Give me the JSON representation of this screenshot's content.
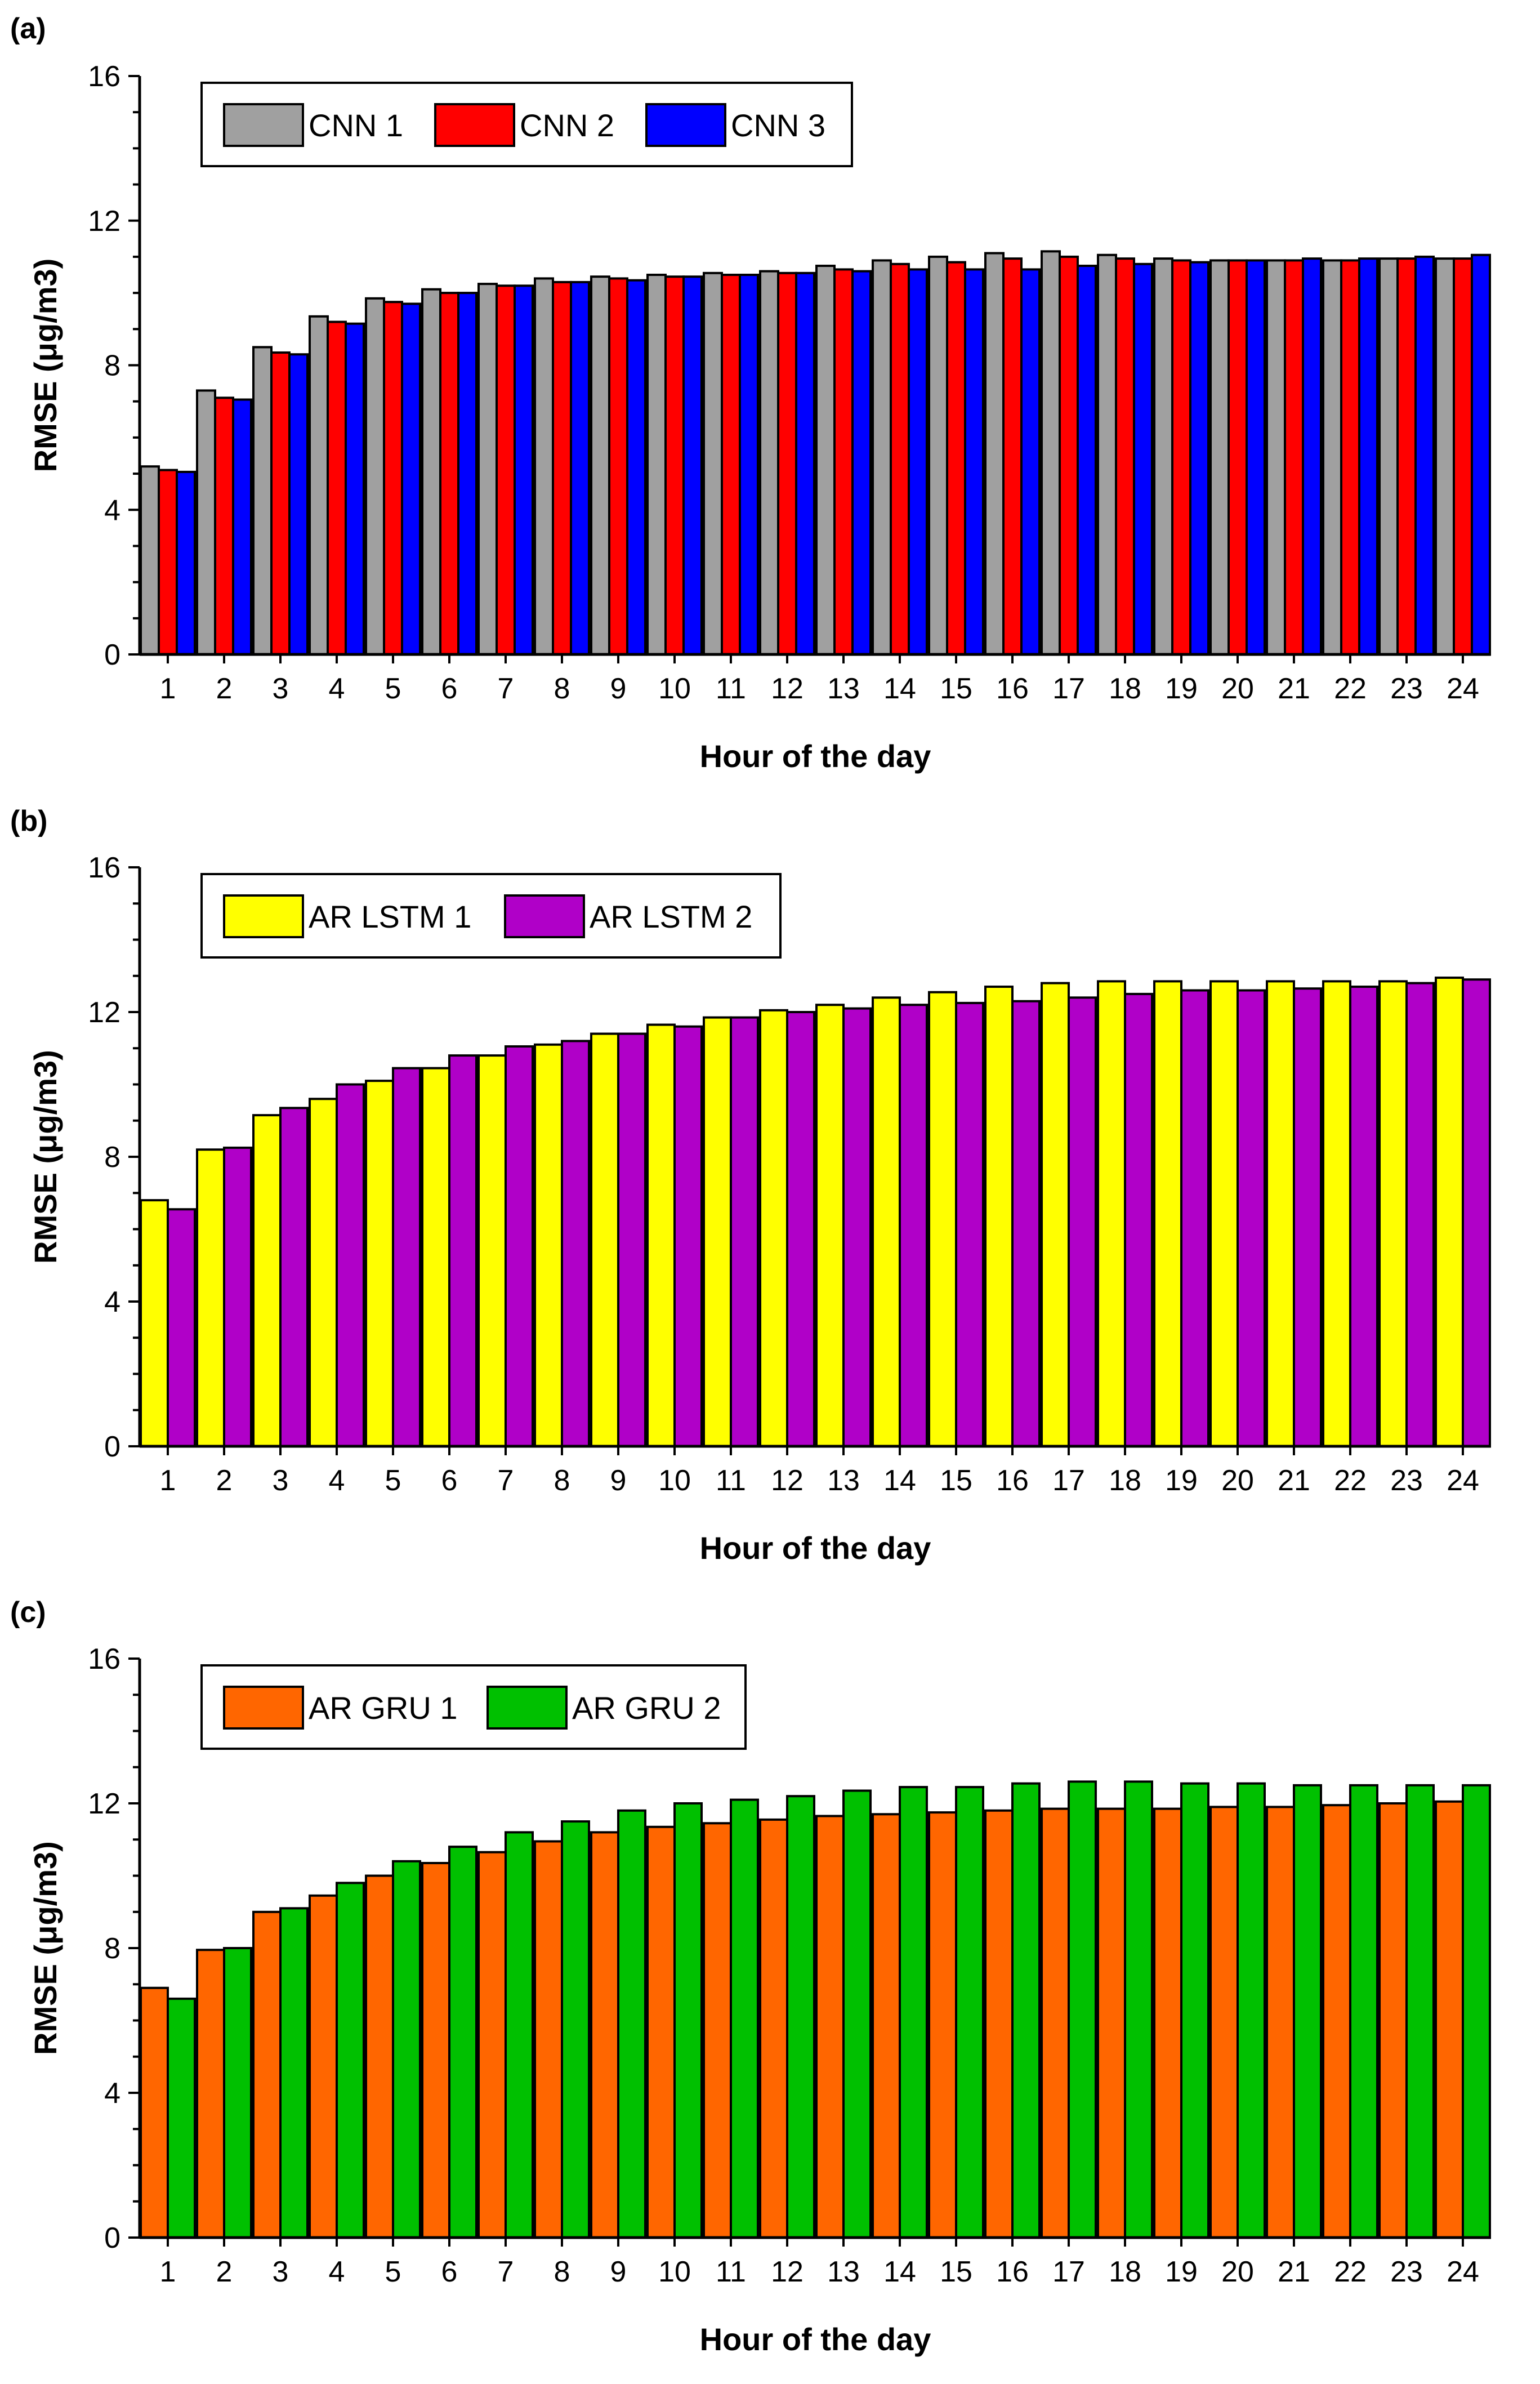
{
  "chart_data": [
    {
      "type": "bar",
      "panel_label": "(a)",
      "title": "",
      "xlabel": "Hour of the day",
      "ylabel": "RMSE (μg/m3)",
      "ylim": [
        0,
        16
      ],
      "yticks": [
        "0",
        "4",
        "8",
        "12",
        "16"
      ],
      "grid": false,
      "legend_position": "top-left",
      "categories": [
        "1",
        "2",
        "3",
        "4",
        "5",
        "6",
        "7",
        "8",
        "9",
        "10",
        "11",
        "12",
        "13",
        "14",
        "15",
        "16",
        "17",
        "18",
        "19",
        "20",
        "21",
        "22",
        "23",
        "24"
      ],
      "series": [
        {
          "name": "CNN 1",
          "color": "#a0a0a0",
          "values": [
            5.2,
            7.3,
            8.5,
            9.35,
            9.85,
            10.1,
            10.25,
            10.4,
            10.45,
            10.5,
            10.55,
            10.6,
            10.75,
            10.9,
            11.0,
            11.1,
            11.15,
            11.05,
            10.95,
            10.9,
            10.9,
            10.9,
            10.95,
            10.95
          ]
        },
        {
          "name": "CNN 2",
          "color": "#ff0000",
          "values": [
            5.1,
            7.1,
            8.35,
            9.2,
            9.75,
            10.0,
            10.2,
            10.3,
            10.4,
            10.45,
            10.5,
            10.55,
            10.65,
            10.8,
            10.85,
            10.95,
            11.0,
            10.95,
            10.9,
            10.9,
            10.9,
            10.9,
            10.95,
            10.95
          ]
        },
        {
          "name": "CNN 3",
          "color": "#0000ff",
          "values": [
            5.05,
            7.05,
            8.3,
            9.15,
            9.7,
            10.0,
            10.2,
            10.3,
            10.35,
            10.45,
            10.5,
            10.55,
            10.6,
            10.65,
            10.65,
            10.65,
            10.75,
            10.8,
            10.85,
            10.9,
            10.95,
            10.95,
            11.0,
            11.05
          ]
        }
      ]
    },
    {
      "type": "bar",
      "panel_label": "(b)",
      "title": "",
      "xlabel": "Hour of the day",
      "ylabel": "RMSE (μg/m3)",
      "ylim": [
        0,
        16
      ],
      "yticks": [
        "0",
        "4",
        "8",
        "12",
        "16"
      ],
      "grid": false,
      "legend_position": "top-left",
      "categories": [
        "1",
        "2",
        "3",
        "4",
        "5",
        "6",
        "7",
        "8",
        "9",
        "10",
        "11",
        "12",
        "13",
        "14",
        "15",
        "16",
        "17",
        "18",
        "19",
        "20",
        "21",
        "22",
        "23",
        "24"
      ],
      "series": [
        {
          "name": "AR LSTM 1",
          "color": "#ffff00",
          "values": [
            6.8,
            8.2,
            9.15,
            9.6,
            10.1,
            10.45,
            10.8,
            11.1,
            11.4,
            11.65,
            11.85,
            12.05,
            12.2,
            12.4,
            12.55,
            12.7,
            12.8,
            12.85,
            12.85,
            12.85,
            12.85,
            12.85,
            12.85,
            12.95
          ]
        },
        {
          "name": "AR LSTM 2",
          "color": "#b000c8",
          "values": [
            6.55,
            8.25,
            9.35,
            10.0,
            10.45,
            10.8,
            11.05,
            11.2,
            11.4,
            11.6,
            11.85,
            12.0,
            12.1,
            12.2,
            12.25,
            12.3,
            12.4,
            12.5,
            12.6,
            12.6,
            12.65,
            12.7,
            12.8,
            12.9
          ]
        }
      ]
    },
    {
      "type": "bar",
      "panel_label": "(c)",
      "title": "",
      "xlabel": "Hour of the day",
      "ylabel": "RMSE (μg/m3)",
      "ylim": [
        0,
        16
      ],
      "yticks": [
        "0",
        "4",
        "8",
        "12",
        "16"
      ],
      "grid": false,
      "legend_position": "top-left",
      "categories": [
        "1",
        "2",
        "3",
        "4",
        "5",
        "6",
        "7",
        "8",
        "9",
        "10",
        "11",
        "12",
        "13",
        "14",
        "15",
        "16",
        "17",
        "18",
        "19",
        "20",
        "21",
        "22",
        "23",
        "24"
      ],
      "series": [
        {
          "name": "AR GRU 1",
          "color": "#ff6600",
          "values": [
            6.9,
            7.95,
            9.0,
            9.45,
            10.0,
            10.35,
            10.65,
            10.95,
            11.2,
            11.35,
            11.45,
            11.55,
            11.65,
            11.7,
            11.75,
            11.8,
            11.85,
            11.85,
            11.85,
            11.9,
            11.9,
            11.95,
            12.0,
            12.05
          ]
        },
        {
          "name": "AR GRU 2",
          "color": "#00c000",
          "values": [
            6.6,
            8.0,
            9.1,
            9.8,
            10.4,
            10.8,
            11.2,
            11.5,
            11.8,
            12.0,
            12.1,
            12.2,
            12.35,
            12.45,
            12.45,
            12.55,
            12.6,
            12.6,
            12.55,
            12.55,
            12.5,
            12.5,
            12.5,
            12.5
          ]
        }
      ]
    }
  ]
}
